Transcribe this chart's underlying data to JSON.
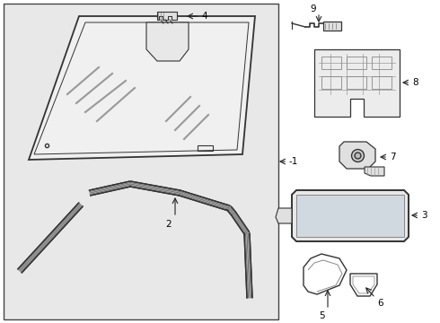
{
  "background_color": "#ffffff",
  "panel_bg": "#e8e8e8",
  "border_color": "#444444",
  "line_color": "#333333",
  "label_color": "#000000",
  "figsize": [
    4.9,
    3.6
  ],
  "dpi": 100
}
